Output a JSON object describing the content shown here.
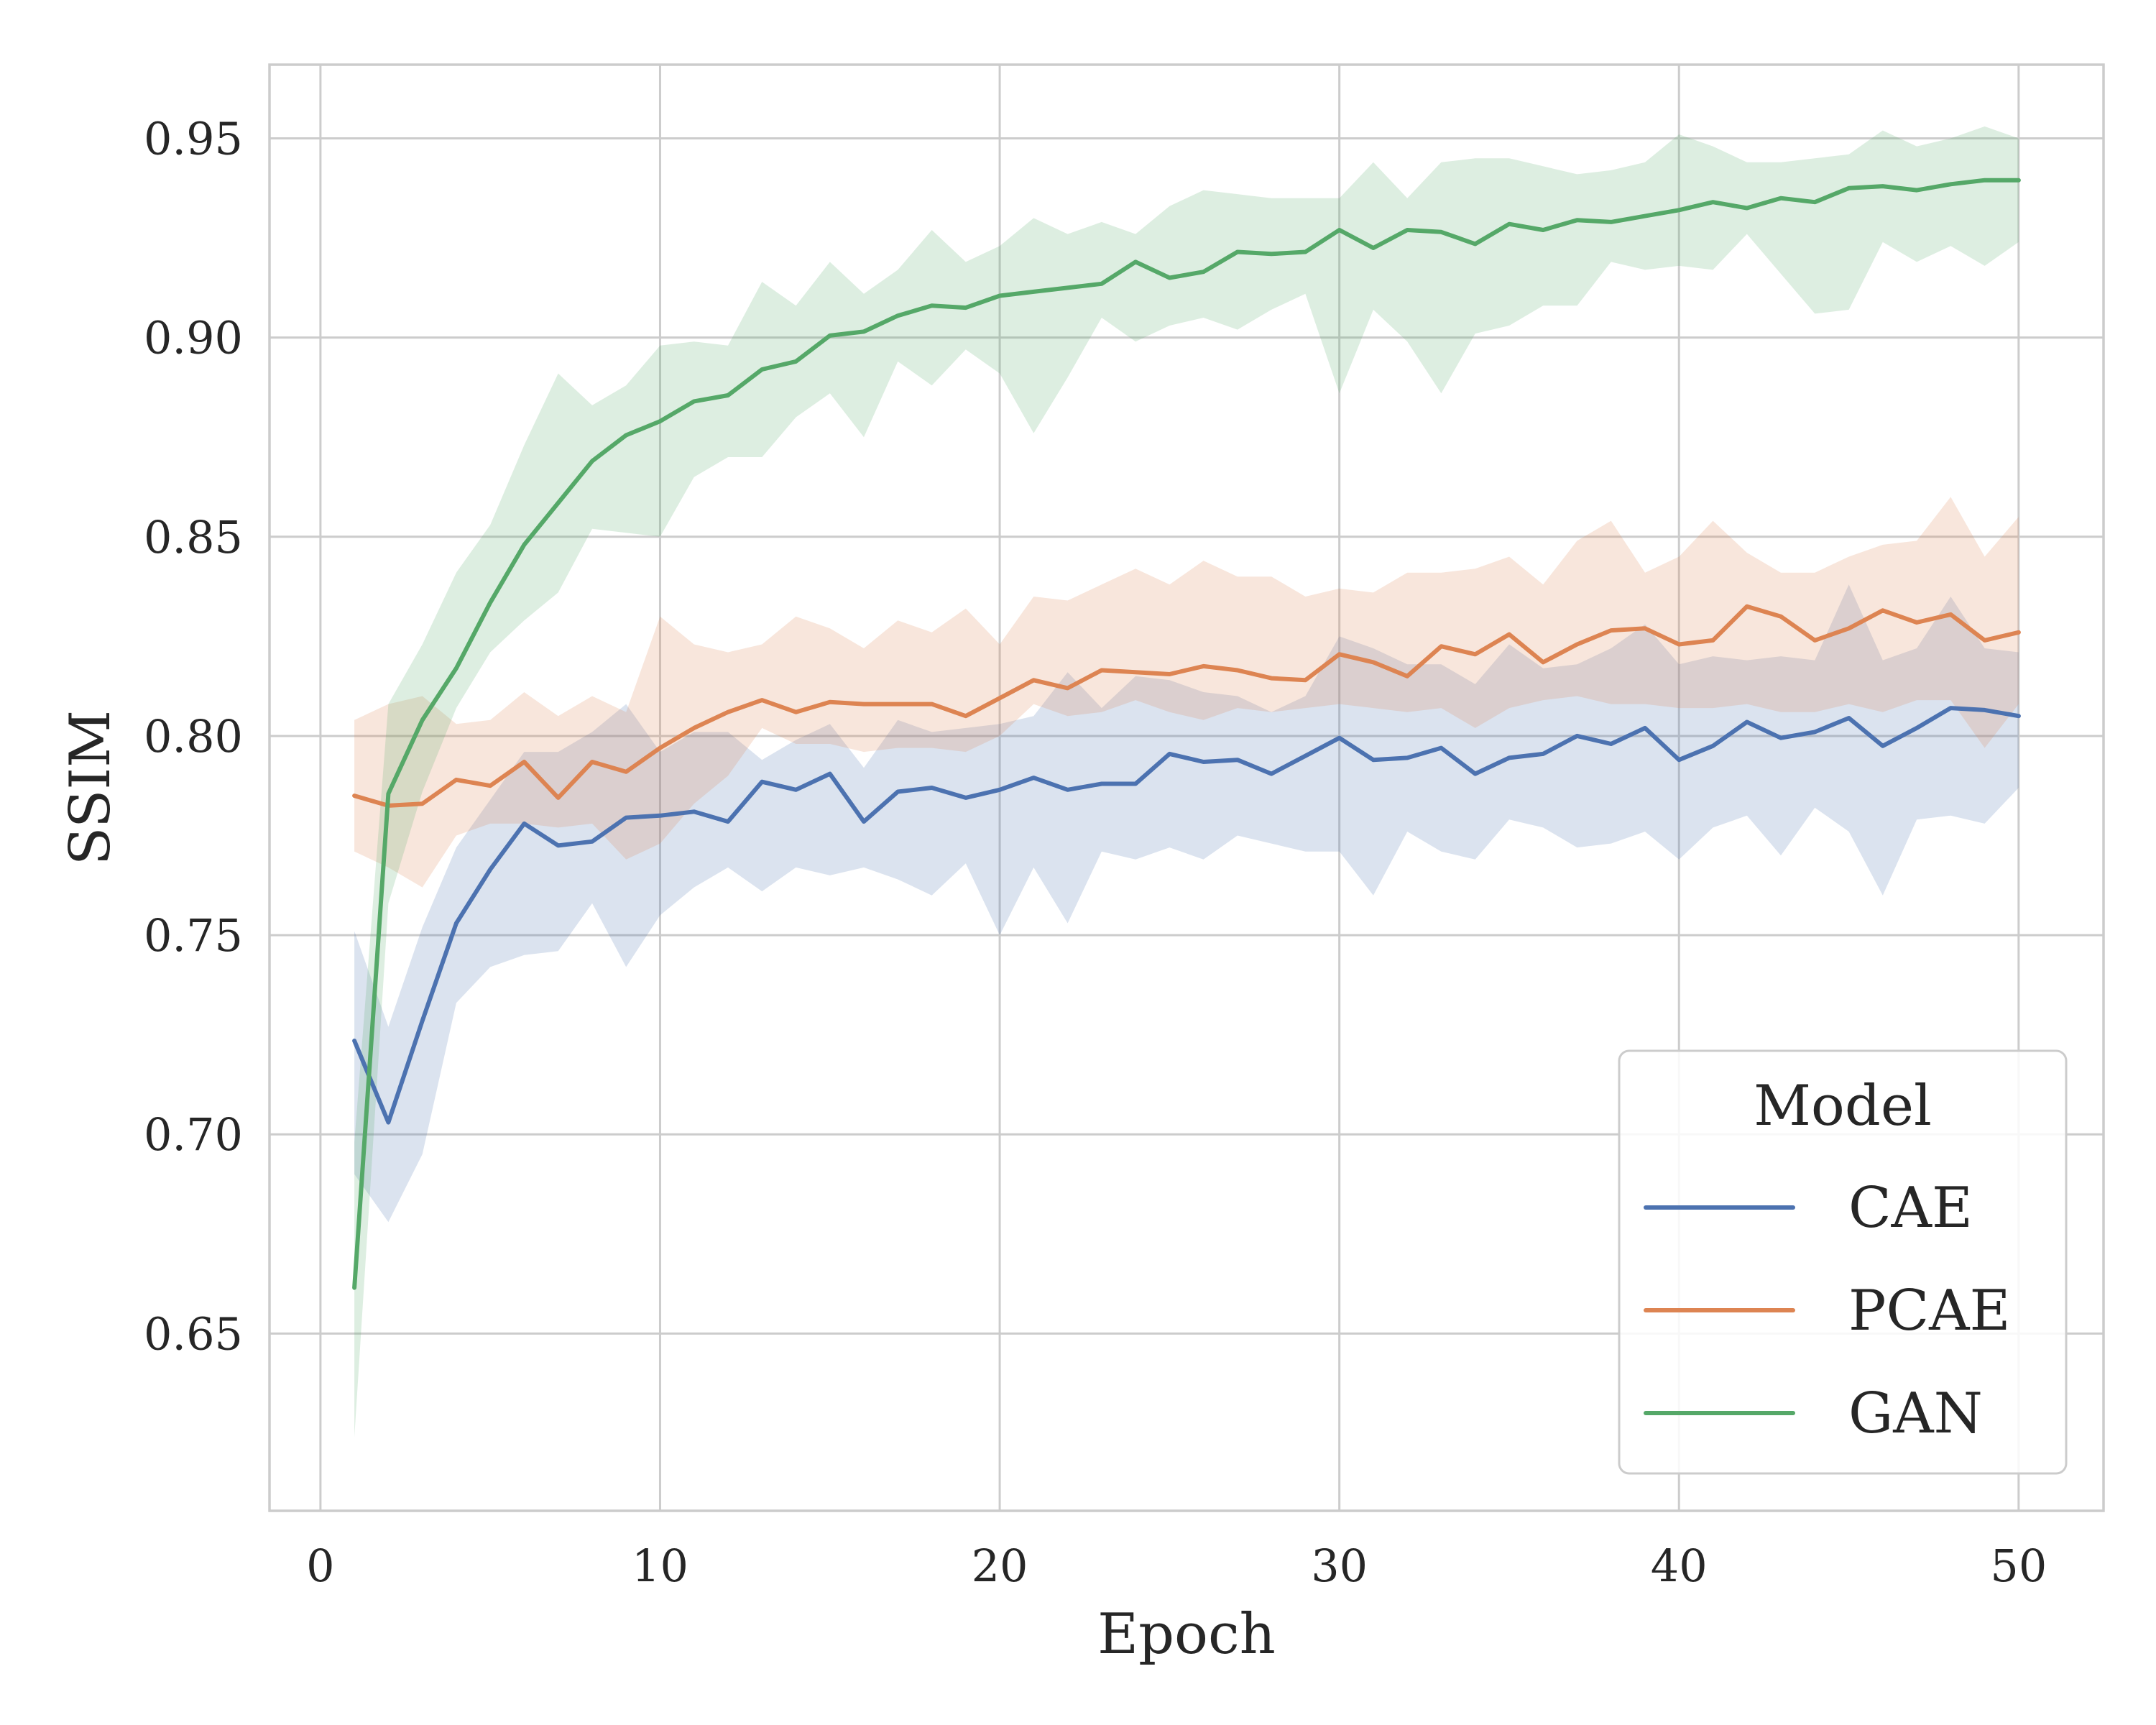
{
  "chart_data": {
    "type": "line",
    "xlabel": "Epoch",
    "ylabel": "SSIM",
    "xlim": [
      -1.5,
      52.5
    ],
    "ylim": [
      0.6055,
      0.9685
    ],
    "xticks": [
      0,
      10,
      20,
      30,
      40,
      50
    ],
    "yticks": [
      0.65,
      0.7,
      0.75,
      0.8,
      0.85,
      0.9,
      0.95
    ],
    "xtick_labels": [
      "0",
      "10",
      "20",
      "30",
      "40",
      "50"
    ],
    "ytick_labels": [
      "0.65",
      "0.70",
      "0.75",
      "0.80",
      "0.85",
      "0.90",
      "0.95"
    ],
    "grid": true,
    "legend": {
      "title": "Model",
      "placement": "lower-right"
    },
    "x": [
      1,
      2,
      3,
      4,
      5,
      6,
      7,
      8,
      9,
      10,
      11,
      12,
      13,
      14,
      15,
      16,
      17,
      18,
      19,
      20,
      21,
      22,
      23,
      24,
      25,
      26,
      27,
      28,
      29,
      30,
      31,
      32,
      33,
      34,
      35,
      36,
      37,
      38,
      39,
      40,
      41,
      42,
      43,
      44,
      45,
      46,
      47,
      48,
      49,
      50
    ],
    "series": [
      {
        "name": "CAE",
        "color": "#4c72b0",
        "values": [
          0.7235,
          0.703,
          0.7285,
          0.753,
          0.7665,
          0.778,
          0.7725,
          0.7735,
          0.7795,
          0.78,
          0.781,
          0.7785,
          0.7885,
          0.7865,
          0.7905,
          0.7785,
          0.786,
          0.787,
          0.7845,
          0.7865,
          0.7895,
          0.7865,
          0.788,
          0.788,
          0.7955,
          0.7935,
          0.794,
          0.7905,
          0.795,
          0.7995,
          0.794,
          0.7945,
          0.797,
          0.7905,
          0.7945,
          0.7955,
          0.8,
          0.798,
          0.802,
          0.794,
          0.7975,
          0.8035,
          0.7995,
          0.801,
          0.8045,
          0.7975,
          0.802,
          0.807,
          0.8065,
          0.805
        ],
        "lower": [
          0.69,
          0.678,
          0.695,
          0.733,
          0.742,
          0.745,
          0.746,
          0.758,
          0.742,
          0.755,
          0.762,
          0.767,
          0.761,
          0.767,
          0.765,
          0.767,
          0.764,
          0.76,
          0.768,
          0.75,
          0.767,
          0.753,
          0.771,
          0.769,
          0.772,
          0.769,
          0.775,
          0.773,
          0.771,
          0.771,
          0.76,
          0.776,
          0.771,
          0.769,
          0.779,
          0.777,
          0.772,
          0.773,
          0.776,
          0.769,
          0.777,
          0.78,
          0.77,
          0.782,
          0.776,
          0.76,
          0.779,
          0.78,
          0.778,
          0.787
        ],
        "upper": [
          0.751,
          0.727,
          0.752,
          0.772,
          0.784,
          0.796,
          0.796,
          0.801,
          0.808,
          0.796,
          0.801,
          0.801,
          0.794,
          0.799,
          0.803,
          0.792,
          0.804,
          0.801,
          0.802,
          0.803,
          0.805,
          0.816,
          0.807,
          0.815,
          0.814,
          0.811,
          0.81,
          0.806,
          0.81,
          0.825,
          0.822,
          0.818,
          0.818,
          0.813,
          0.823,
          0.817,
          0.818,
          0.822,
          0.828,
          0.818,
          0.82,
          0.819,
          0.82,
          0.819,
          0.838,
          0.819,
          0.822,
          0.835,
          0.822,
          0.821
        ]
      },
      {
        "name": "PCAE",
        "color": "#dd8452",
        "values": [
          0.785,
          0.7825,
          0.783,
          0.789,
          0.7875,
          0.7935,
          0.7845,
          0.7935,
          0.791,
          0.797,
          0.802,
          0.806,
          0.809,
          0.806,
          0.8085,
          0.808,
          0.808,
          0.808,
          0.805,
          0.8095,
          0.814,
          0.812,
          0.8165,
          0.816,
          0.8155,
          0.8175,
          0.8165,
          0.8145,
          0.814,
          0.8205,
          0.8185,
          0.815,
          0.8225,
          0.8205,
          0.8255,
          0.8185,
          0.823,
          0.8265,
          0.827,
          0.823,
          0.824,
          0.8325,
          0.83,
          0.824,
          0.827,
          0.8315,
          0.8285,
          0.8305,
          0.824,
          0.826
        ],
        "lower": [
          0.771,
          0.767,
          0.762,
          0.775,
          0.778,
          0.778,
          0.777,
          0.778,
          0.769,
          0.773,
          0.783,
          0.79,
          0.802,
          0.798,
          0.798,
          0.796,
          0.797,
          0.797,
          0.796,
          0.8,
          0.808,
          0.805,
          0.806,
          0.809,
          0.806,
          0.804,
          0.807,
          0.806,
          0.807,
          0.808,
          0.807,
          0.806,
          0.807,
          0.802,
          0.807,
          0.809,
          0.81,
          0.808,
          0.808,
          0.807,
          0.807,
          0.808,
          0.806,
          0.806,
          0.808,
          0.806,
          0.809,
          0.809,
          0.797,
          0.808
        ],
        "upper": [
          0.804,
          0.808,
          0.81,
          0.803,
          0.804,
          0.811,
          0.805,
          0.81,
          0.806,
          0.83,
          0.823,
          0.821,
          0.823,
          0.83,
          0.827,
          0.822,
          0.829,
          0.826,
          0.832,
          0.823,
          0.835,
          0.834,
          0.838,
          0.842,
          0.838,
          0.844,
          0.84,
          0.84,
          0.835,
          0.837,
          0.836,
          0.841,
          0.841,
          0.842,
          0.845,
          0.838,
          0.849,
          0.854,
          0.841,
          0.845,
          0.854,
          0.846,
          0.841,
          0.841,
          0.845,
          0.848,
          0.849,
          0.86,
          0.845,
          0.855
        ]
      },
      {
        "name": "GAN",
        "color": "#55a868",
        "values": [
          0.6615,
          0.7855,
          0.804,
          0.817,
          0.8335,
          0.848,
          0.8585,
          0.869,
          0.8755,
          0.879,
          0.884,
          0.8855,
          0.892,
          0.894,
          0.9005,
          0.9015,
          0.9055,
          0.908,
          0.9075,
          0.9105,
          0.9115,
          0.9125,
          0.9135,
          0.919,
          0.915,
          0.9165,
          0.9215,
          0.921,
          0.9215,
          0.927,
          0.9225,
          0.927,
          0.9265,
          0.9235,
          0.9285,
          0.927,
          0.9295,
          0.929,
          0.9305,
          0.932,
          0.934,
          0.9325,
          0.935,
          0.934,
          0.9375,
          0.938,
          0.937,
          0.9385,
          0.9395,
          0.9395
        ],
        "lower": [
          0.624,
          0.758,
          0.786,
          0.807,
          0.821,
          0.829,
          0.836,
          0.852,
          0.851,
          0.85,
          0.865,
          0.87,
          0.87,
          0.88,
          0.886,
          0.875,
          0.894,
          0.888,
          0.897,
          0.891,
          0.876,
          0.89,
          0.905,
          0.899,
          0.903,
          0.905,
          0.902,
          0.907,
          0.911,
          0.886,
          0.907,
          0.899,
          0.886,
          0.901,
          0.903,
          0.908,
          0.908,
          0.919,
          0.917,
          0.918,
          0.917,
          0.926,
          0.916,
          0.906,
          0.907,
          0.924,
          0.919,
          0.923,
          0.918,
          0.924
        ],
        "upper": [
          0.698,
          0.808,
          0.823,
          0.841,
          0.853,
          0.873,
          0.891,
          0.883,
          0.888,
          0.898,
          0.899,
          0.898,
          0.914,
          0.908,
          0.919,
          0.911,
          0.917,
          0.927,
          0.919,
          0.923,
          0.93,
          0.926,
          0.929,
          0.926,
          0.933,
          0.937,
          0.936,
          0.935,
          0.935,
          0.935,
          0.944,
          0.935,
          0.944,
          0.945,
          0.945,
          0.943,
          0.941,
          0.942,
          0.944,
          0.951,
          0.948,
          0.944,
          0.944,
          0.945,
          0.946,
          0.952,
          0.948,
          0.95,
          0.953,
          0.95
        ]
      }
    ]
  }
}
